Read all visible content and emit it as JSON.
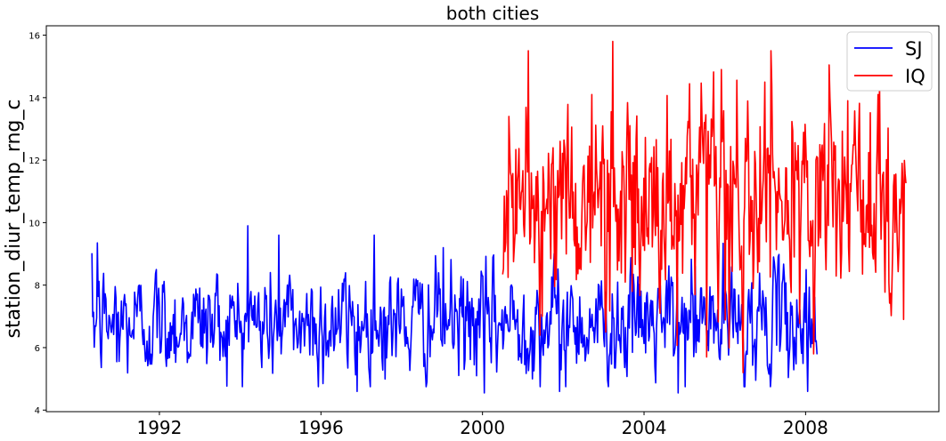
{
  "chart_data": {
    "type": "line",
    "title": "both cities",
    "xlabel": "",
    "ylabel": "station_diur_temp_rng_c",
    "xlim": [
      1989.2,
      2011.3
    ],
    "ylim": [
      3.95,
      16.3
    ],
    "x_ticks": [
      1992,
      1996,
      2000,
      2004,
      2008
    ],
    "y_ticks": [
      4,
      6,
      8,
      10,
      12,
      14,
      16
    ],
    "legend": "top-right",
    "series": [
      {
        "name": "SJ",
        "color": "#0000ff",
        "x_start": 1990.33,
        "x_step": 0.0192,
        "x_end": 2008.3,
        "mean": 6.8,
        "sd": 0.8,
        "min": 4.55,
        "max": 9.9,
        "peaks": [
          {
            "x": 1990.47,
            "y": 9.35
          },
          {
            "x": 1994.18,
            "y": 9.9
          },
          {
            "x": 1994.95,
            "y": 9.6
          },
          {
            "x": 1997.32,
            "y": 9.6
          },
          {
            "x": 1999.03,
            "y": 9.2
          },
          {
            "x": 2005.27,
            "y": 8.6
          }
        ],
        "troughs": [
          {
            "x": 1990.95,
            "y": 5.55
          },
          {
            "x": 1996.05,
            "y": 4.85
          },
          {
            "x": 1996.9,
            "y": 4.6
          },
          {
            "x": 2000.05,
            "y": 4.55
          },
          {
            "x": 2001.9,
            "y": 4.6
          },
          {
            "x": 2004.85,
            "y": 4.55
          },
          {
            "x": 2008.05,
            "y": 4.6
          }
        ]
      },
      {
        "name": "IQ",
        "color": "#ff0000",
        "x_start": 2000.5,
        "x_step": 0.0192,
        "x_end": 2010.5,
        "mean": 10.6,
        "sd": 1.5,
        "min": 5.2,
        "max": 15.8,
        "peaks": [
          {
            "x": 2000.65,
            "y": 13.4
          },
          {
            "x": 2002.7,
            "y": 14.1
          },
          {
            "x": 2003.22,
            "y": 15.8
          },
          {
            "x": 2005.92,
            "y": 14.9
          },
          {
            "x": 2006.98,
            "y": 14.5
          },
          {
            "x": 2008.6,
            "y": 14.0
          },
          {
            "x": 2009.05,
            "y": 13.9
          },
          {
            "x": 2009.8,
            "y": 14.1
          }
        ],
        "troughs": [
          {
            "x": 2003.05,
            "y": 6.5
          },
          {
            "x": 2004.4,
            "y": 7.1
          },
          {
            "x": 2005.55,
            "y": 5.7
          },
          {
            "x": 2006.45,
            "y": 5.2
          },
          {
            "x": 2008.2,
            "y": 5.8
          },
          {
            "x": 2010.42,
            "y": 6.9
          }
        ]
      }
    ]
  }
}
